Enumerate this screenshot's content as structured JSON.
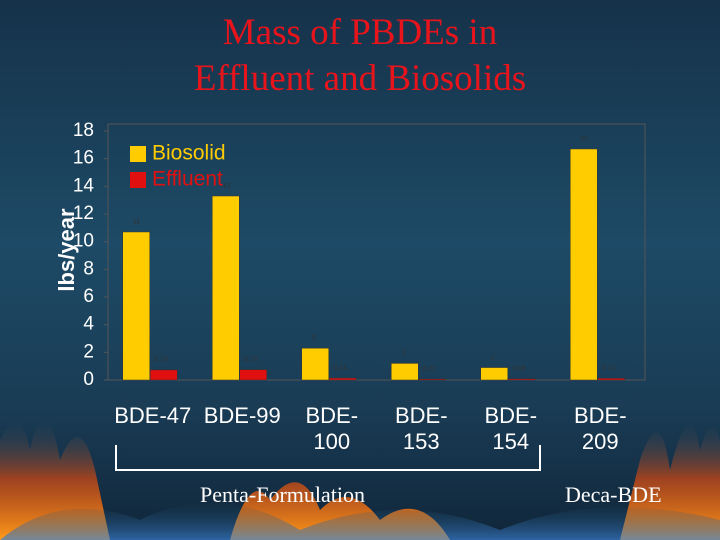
{
  "chart_data": {
    "type": "bar",
    "title_lines": [
      "Mass of PBDEs in",
      "Effluent and Biosolids"
    ],
    "y_label": "lbs/year",
    "categories": [
      "BDE-47",
      "BDE-99",
      "BDE-100",
      "BDE-153",
      "BDE-154",
      "BDE-209"
    ],
    "series": [
      {
        "name": "Biosolid",
        "color": "#ffcc00",
        "values": [
          10.7,
          13.3,
          2.3,
          1.2,
          0.9,
          16.7
        ],
        "value_labels": [
          "11",
          "13",
          "2",
          "1",
          "1",
          "17"
        ]
      },
      {
        "name": "Effluent",
        "color": "#e01010",
        "values": [
          0.73,
          0.75,
          0.14,
          0.07,
          0.08,
          0.12
        ]
      }
    ],
    "ylim": [
      0,
      18
    ],
    "yticks": [
      0,
      2,
      4,
      6,
      8,
      10,
      12,
      14,
      16,
      18
    ],
    "annotations": [
      "Penta-Formulation",
      "Deca-BDE"
    ]
  }
}
